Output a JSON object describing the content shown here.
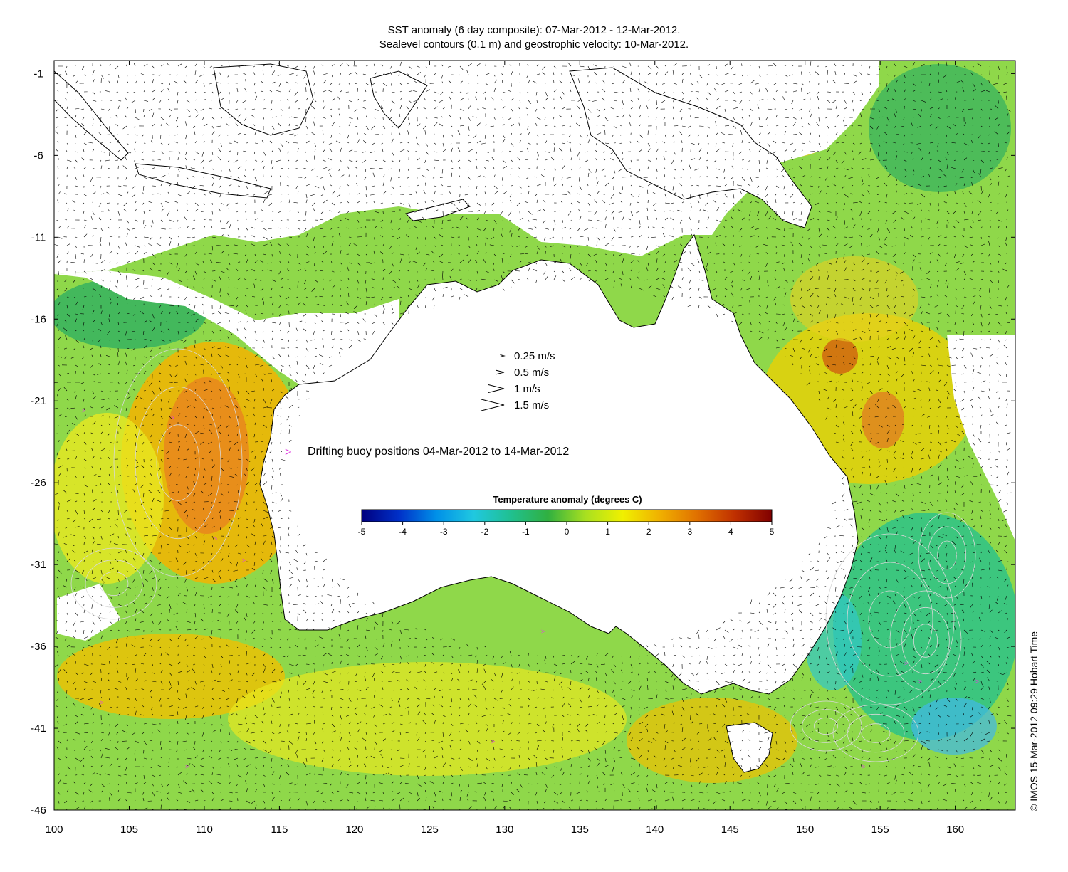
{
  "title_line1": "SST anomaly (6 day composite): 07-Mar-2012 - 12-Mar-2012.",
  "title_line2": "Sealevel contours (0.1 m) and geostrophic velocity: 10-Mar-2012.",
  "credit": "© IMOS 15-Mar-2012 09:29 Hobart Time",
  "axes": {
    "lon_ticks": [
      100,
      105,
      110,
      115,
      120,
      125,
      130,
      135,
      140,
      145,
      150,
      155,
      160
    ],
    "lat_ticks": [
      -1,
      -6,
      -11,
      -16,
      -21,
      -26,
      -31,
      -36,
      -41,
      -46
    ],
    "lon_range": [
      100,
      164
    ],
    "lat_range": [
      -46,
      -0.2
    ]
  },
  "velocity_legend": [
    {
      "speed": 0.25,
      "label": "0.25 m/s"
    },
    {
      "speed": 0.5,
      "label": "0.5 m/s"
    },
    {
      "speed": 1,
      "label": "1 m/s"
    },
    {
      "speed": 1.5,
      "label": "1.5 m/s"
    }
  ],
  "buoy_legend": {
    "label": "Drifting buoy positions 04-Mar-2012 to 14-Mar-2012",
    "color": "#e040e0"
  },
  "colorbar": {
    "title": "Temperature anomaly (degrees C)",
    "range": [
      -5,
      5
    ],
    "ticks": [
      -5,
      -4,
      -3,
      -2,
      -1,
      0,
      1,
      2,
      3,
      4,
      5
    ],
    "colors": [
      "#00007f",
      "#0030c8",
      "#0090e8",
      "#20c8e0",
      "#20c090",
      "#30b040",
      "#a8e020",
      "#f0f000",
      "#f0b000",
      "#e07000",
      "#c03000",
      "#800000"
    ]
  },
  "colors": {
    "land": "#ffffff",
    "coast": "#000000",
    "ocean_base": "#8fd84a"
  }
}
